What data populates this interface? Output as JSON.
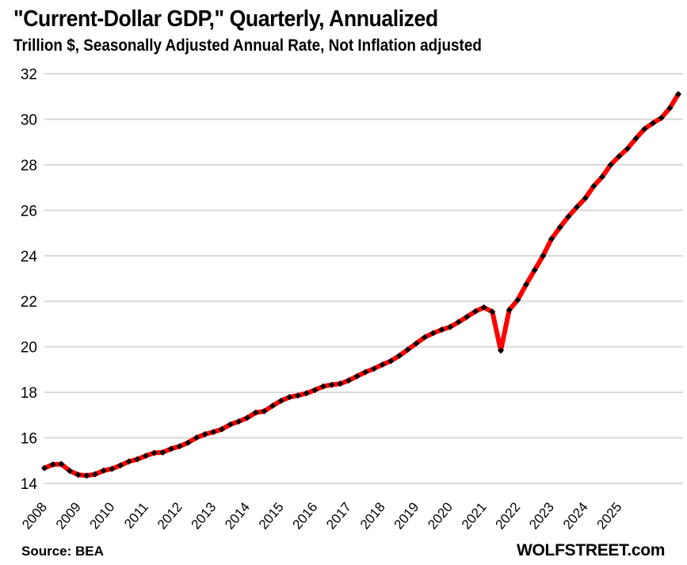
{
  "chart_data": {
    "type": "line",
    "title": "\"Current-Dollar GDP,\" Quarterly, Annualized",
    "subtitle": "Trillion $, Seasonally Adjusted Annual Rate, Not Inflation adjusted",
    "xlabel": "",
    "ylabel": "",
    "ylim": [
      14,
      32
    ],
    "yticks": [
      14,
      16,
      18,
      20,
      22,
      24,
      26,
      28,
      30,
      32
    ],
    "xtick_labels": [
      "2008",
      "2009",
      "2010",
      "2011",
      "2012",
      "2013",
      "2014",
      "2015",
      "2016",
      "2017",
      "2018",
      "2019",
      "2020",
      "2021",
      "2022",
      "2023",
      "2024",
      "2025"
    ],
    "grid": true,
    "legend": "none",
    "series": [
      {
        "name": "Current-Dollar GDP",
        "color": "#ff0000",
        "marker_color": "#000000",
        "start": "2008Q1",
        "frequency": "quarterly",
        "values": [
          14.67,
          14.83,
          14.85,
          14.55,
          14.38,
          14.34,
          14.4,
          14.56,
          14.64,
          14.79,
          14.96,
          15.06,
          15.21,
          15.34,
          15.36,
          15.52,
          15.63,
          15.79,
          16.01,
          16.16,
          16.26,
          16.38,
          16.59,
          16.72,
          16.88,
          17.11,
          17.17,
          17.41,
          17.63,
          17.79,
          17.86,
          17.96,
          18.1,
          18.26,
          18.33,
          18.38,
          18.52,
          18.71,
          18.89,
          19.04,
          19.22,
          19.38,
          19.61,
          19.88,
          20.15,
          20.42,
          20.6,
          20.75,
          20.87,
          21.09,
          21.32,
          21.56,
          21.73,
          21.54,
          19.84,
          21.62,
          22.06,
          22.74,
          23.37,
          24.0,
          24.74,
          25.25,
          25.72,
          26.14,
          26.53,
          27.06,
          27.47,
          28.0,
          28.37,
          28.71,
          29.16,
          29.57,
          29.83,
          30.06,
          30.49,
          31.1
        ]
      }
    ],
    "source": "Source: BEA",
    "brand": "WOLFSTREET.com"
  }
}
